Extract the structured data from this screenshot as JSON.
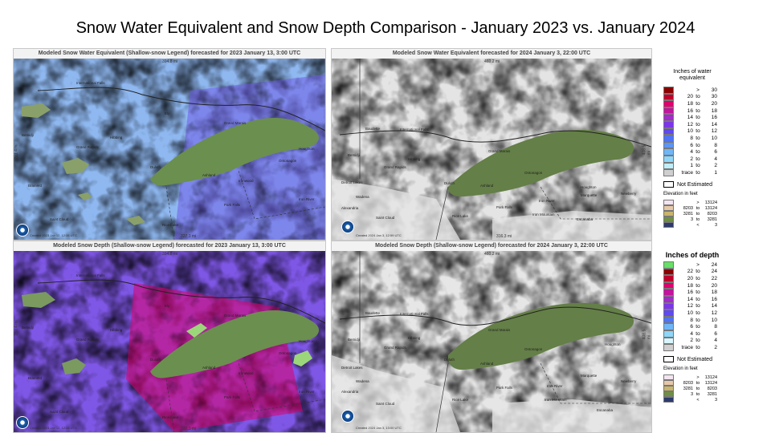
{
  "title": "Snow Water Equivalent and Snow Depth Comparison - January 2023 vs. January 2024",
  "panels": {
    "tl": {
      "title": "Modeled Snow Water Equivalent (Shallow-snow Legend) forecasted for 2023 January 13, 3:00 UTC",
      "scale_top": "394.8 mi",
      "scale_bottom": "327.3 mi",
      "scale_side": "281.4 mi",
      "stamp": "Created 2023 Jan 12, 12:34 UTC"
    },
    "tr": {
      "title": "Modeled Snow Water Equivalent forecasted for 2024 January 3, 22:00 UTC",
      "scale_top": "460.2 mi",
      "scale_bottom": "316.3 mi",
      "scale_side": "408.5 mi",
      "stamp": "Created 2024 Jan 3, 12:59 UTC"
    },
    "bl": {
      "title": "Modeled Snow Depth (Shallow-snow Legend) forecasted for 2023 January 13, 3:00 UTC",
      "scale_top": "394.8 mi",
      "scale_bottom": "327.3 mi",
      "scale_side": "281.4 mi",
      "stamp": "Created 2023 Jan 12, 12:34 UTC"
    },
    "br": {
      "title": "Modeled Snow Depth (Shallow-snow Legend) forecasted for 2024 January 3, 22:00 UTC",
      "scale_top": "460.2 mi",
      "scale_bottom": "",
      "scale_side": "408.5 mi",
      "stamp": "Created 2024 Jan 3, 13:00 UTC"
    }
  },
  "cities_left": [
    "International Falls",
    "Ely",
    "Grand Marais",
    "Hibbing",
    "Grand Rapids",
    "Bemidji",
    "Duluth",
    "Ashland",
    "Ironwood",
    "Brainerd",
    "Park Falls",
    "Iron River",
    "Saint Cloud",
    "Rice Lake",
    "Ontonagon",
    "Houghton"
  ],
  "cities_right": [
    "Baudette",
    "International Falls",
    "Grand Marais",
    "Hibbing",
    "Grand Rapids",
    "Bemidji",
    "Duluth",
    "Ontonagon",
    "Ashland",
    "Iron River",
    "Park Falls",
    "Iron Mountain",
    "Marquette",
    "Escanaba",
    "Newberry",
    "Saint Cloud",
    "Rice Lake",
    "Alexandria",
    "Detroit Lakes",
    "Wadena",
    "Houghton"
  ],
  "legend_swe": {
    "heading": "Inches of water equivalent",
    "rows": [
      {
        "a": "",
        "b": ">",
        "c": "30",
        "color": "#8b0000"
      },
      {
        "a": "20",
        "b": "to",
        "c": "30",
        "color": "#c0002a"
      },
      {
        "a": "18",
        "b": "to",
        "c": "20",
        "color": "#e0006e"
      },
      {
        "a": "16",
        "b": "to",
        "c": "18",
        "color": "#c2149c"
      },
      {
        "a": "14",
        "b": "to",
        "c": "16",
        "color": "#a32acb"
      },
      {
        "a": "12",
        "b": "to",
        "c": "14",
        "color": "#7c36e8"
      },
      {
        "a": "10",
        "b": "to",
        "c": "12",
        "color": "#5f49f2"
      },
      {
        "a": "8",
        "b": "to",
        "c": "10",
        "color": "#4f73f5"
      },
      {
        "a": "6",
        "b": "to",
        "c": "8",
        "color": "#5b96f7"
      },
      {
        "a": "4",
        "b": "to",
        "c": "6",
        "color": "#6fb6f8"
      },
      {
        "a": "2",
        "b": "to",
        "c": "4",
        "color": "#8fd6f9"
      },
      {
        "a": "1",
        "b": "to",
        "c": "2",
        "color": "#bfeefb"
      },
      {
        "a": "trace",
        "b": "to",
        "c": "1",
        "color": "#cfcfcf"
      }
    ],
    "not_estimated": "Not Estimated",
    "elev_heading": "Elevation in feet",
    "elev_rows": [
      {
        "a": "",
        "b": ">",
        "c": "13124",
        "color": "#f4e4f0"
      },
      {
        "a": "8203",
        "b": "to",
        "c": "13124",
        "color": "#e7c8a8"
      },
      {
        "a": "3281",
        "b": "to",
        "c": "8203",
        "color": "#c9b56c"
      },
      {
        "a": "3",
        "b": "to",
        "c": "3281",
        "color": "#6f8f45"
      },
      {
        "a": "",
        "b": "<",
        "c": "3",
        "color": "#2d3a6b"
      }
    ]
  },
  "legend_depth": {
    "heading": "Inches of depth",
    "rows": [
      {
        "a": "",
        "b": ">",
        "c": "24",
        "color": "#66e066"
      },
      {
        "a": "22",
        "b": "to",
        "c": "24",
        "color": "#8b0000"
      },
      {
        "a": "20",
        "b": "to",
        "c": "22",
        "color": "#c0002a"
      },
      {
        "a": "18",
        "b": "to",
        "c": "20",
        "color": "#e0006e"
      },
      {
        "a": "16",
        "b": "to",
        "c": "18",
        "color": "#c2149c"
      },
      {
        "a": "14",
        "b": "to",
        "c": "16",
        "color": "#a32acb"
      },
      {
        "a": "12",
        "b": "to",
        "c": "14",
        "color": "#7c36e8"
      },
      {
        "a": "10",
        "b": "to",
        "c": "12",
        "color": "#5f49f2"
      },
      {
        "a": "8",
        "b": "to",
        "c": "10",
        "color": "#4f73f5"
      },
      {
        "a": "6",
        "b": "to",
        "c": "8",
        "color": "#6fb6f8"
      },
      {
        "a": "4",
        "b": "to",
        "c": "6",
        "color": "#8fd6f9"
      },
      {
        "a": "2",
        "b": "to",
        "c": "4",
        "color": "#d8f6fb"
      },
      {
        "a": "trace",
        "b": "to",
        "c": "2",
        "color": "#cfcfcf"
      }
    ],
    "not_estimated": "Not Estimated",
    "elev_heading": "Elevation in feet",
    "elev_rows": [
      {
        "a": "",
        "b": ">",
        "c": "13124",
        "color": "#f4e4f0"
      },
      {
        "a": "8203",
        "b": "to",
        "c": "13124",
        "color": "#e7c8a8"
      },
      {
        "a": "3281",
        "b": "to",
        "c": "8203",
        "color": "#c9b56c"
      },
      {
        "a": "3",
        "b": "to",
        "c": "3281",
        "color": "#6f8f45"
      },
      {
        "a": "",
        "b": "<",
        "c": "3",
        "color": "#2d3a6b"
      }
    ]
  }
}
